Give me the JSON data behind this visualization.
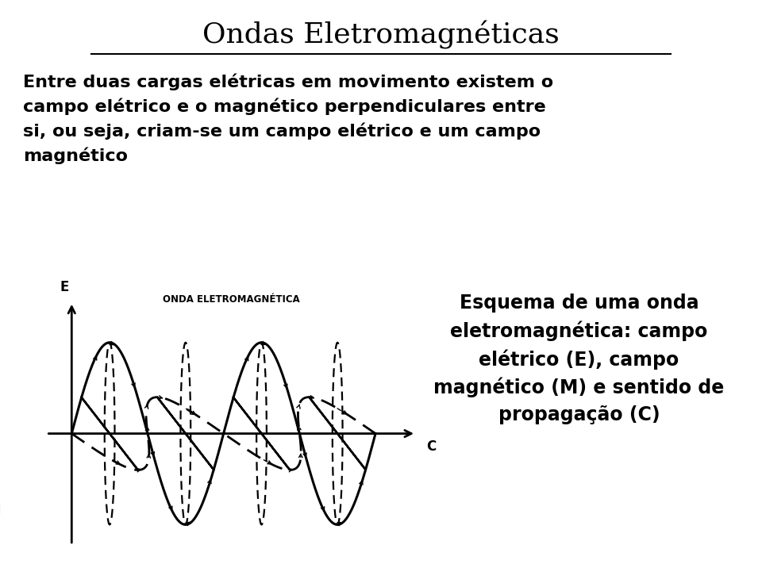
{
  "title": "Ondas Eletromagnéticas",
  "body_text": "Entre duas cargas elétricas em movimento existem o\ncampo elétrico e o magnético perpendiculares entre\nsi, ou seja, criam-se um campo elétrico e um campo\nmagnético",
  "caption_text": "Esquema de uma onda\neletromagnética: campo\nelétrico (E), campo\nmagnético (M) e sentido de\npropagação (C)",
  "diagram_label": "ONDA ELETROMAGNÉTICA",
  "label_E": "E",
  "label_M": "M",
  "label_C": "C",
  "bg_color": "#ffffff",
  "text_color": "#000000",
  "title_fontsize": 26,
  "body_fontsize": 16,
  "caption_fontsize": 17,
  "diagram_label_fontsize": 8.5
}
